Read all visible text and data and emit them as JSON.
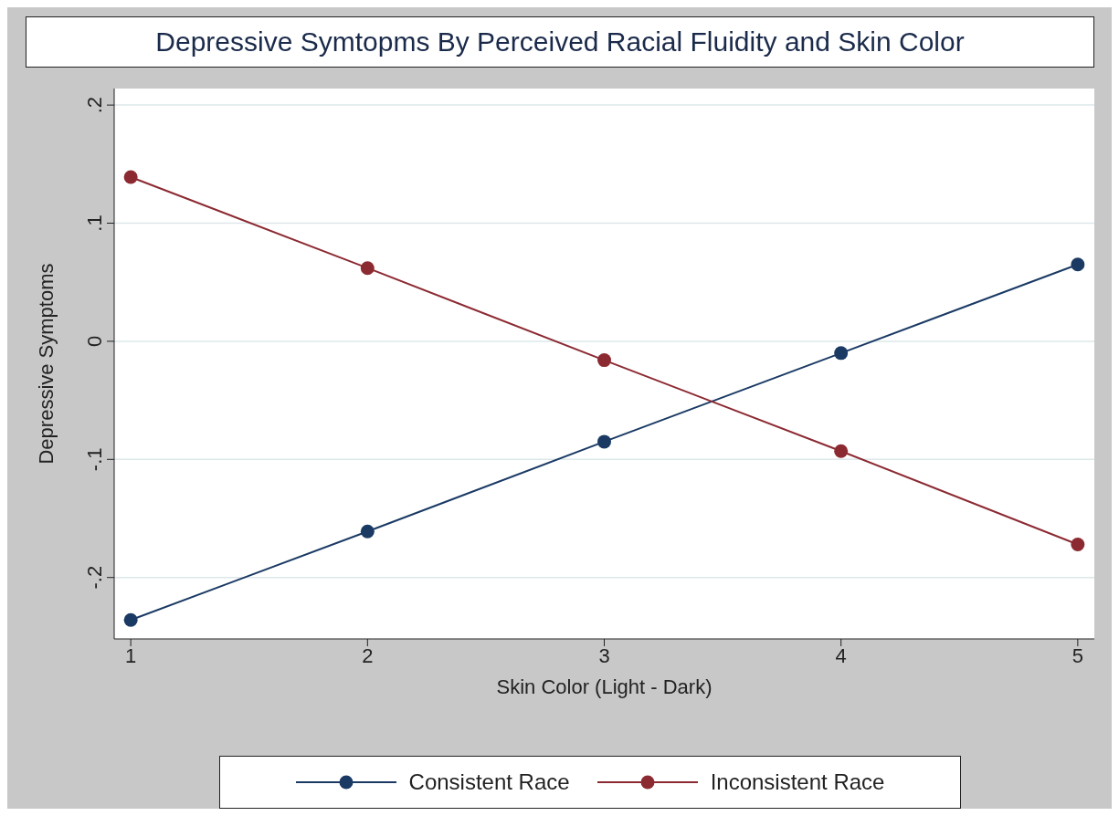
{
  "chart_data": {
    "type": "line",
    "title": "Depressive Symtopms By Perceived Racial Fluidity and Skin Color",
    "xlabel": "Skin Color (Light - Dark)",
    "ylabel": "Depressive Symptoms",
    "x": [
      1,
      2,
      3,
      4,
      5
    ],
    "series": [
      {
        "name": "Consistent Race",
        "color": "#1a3a64",
        "values": [
          -0.236,
          -0.161,
          -0.085,
          -0.01,
          0.065
        ]
      },
      {
        "name": "Inconsistent Race",
        "color": "#8c2a32",
        "values": [
          0.139,
          0.062,
          -0.016,
          -0.093,
          -0.172
        ]
      }
    ],
    "xlim": [
      0.93,
      5.07
    ],
    "xticks": [
      1,
      2,
      3,
      4,
      5
    ],
    "ylim": [
      -0.252,
      0.214
    ],
    "yticks": [
      {
        "value": -0.2,
        "label": "-.2"
      },
      {
        "value": -0.1,
        "label": "-.1"
      },
      0,
      {
        "value": 0.1,
        "label": ".1"
      },
      {
        "value": 0.2,
        "label": ".2"
      }
    ],
    "grid": "y",
    "legend": "bottom",
    "marker": "circle",
    "line_style": "solid"
  }
}
